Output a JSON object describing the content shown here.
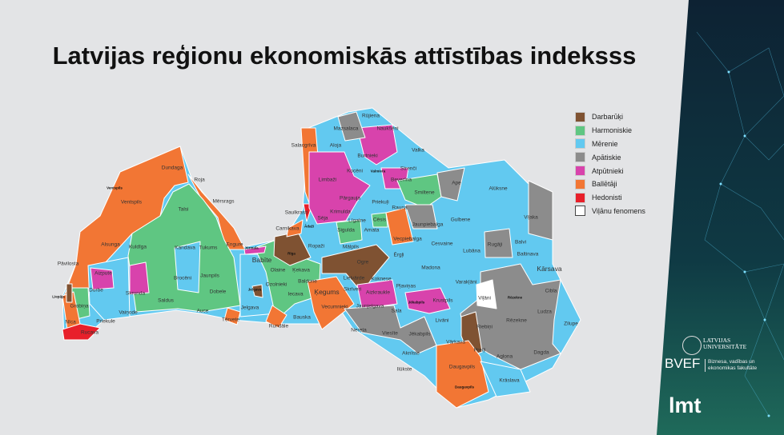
{
  "title": "Latvijas reģionu ekonomiskās attīstības indeksss",
  "colors": {
    "background": "#e3e4e6",
    "darbaruki": "#7f5232",
    "harmoniskie": "#5fc682",
    "merenie": "#62c9f0",
    "apatiskie": "#8c8c8c",
    "atputnieki": "#d843ac",
    "balletaji": "#f27634",
    "hedonisti": "#e8202a",
    "vilanu": "#ffffff"
  },
  "legend": [
    {
      "label": "Darbarūķi",
      "color": "#7f5232"
    },
    {
      "label": "Harmoniskie",
      "color": "#5fc682"
    },
    {
      "label": "Mērenie",
      "color": "#62c9f0"
    },
    {
      "label": "Apātiskie",
      "color": "#8c8c8c"
    },
    {
      "label": "Atpūtnieki",
      "color": "#d843ac"
    },
    {
      "label": "Ballētāji",
      "color": "#f27634"
    },
    {
      "label": "Hedonisti",
      "color": "#e8202a"
    },
    {
      "label": "Viļānu fenomens",
      "color": "#ffffff"
    }
  ],
  "labels": [
    "Dundaga",
    "Roja",
    "Mērsrags",
    "Ventspils",
    "Ventspils",
    "Talsi",
    "Alsunga",
    "Kuldīga",
    "Kandava",
    "Tukums",
    "Engure",
    "Pāvilosta",
    "Aizpute",
    "Durbe",
    "Skrunda",
    "Brocēni",
    "Jaunpils",
    "Dobele",
    "Saldus",
    "Grobiņa",
    "Liepāja",
    "Vaiņode",
    "Priekule",
    "Auce",
    "Jelgava",
    "Tērvete",
    "Nīca",
    "Rucava",
    "Babīte",
    "Jūrmala",
    "Jelgava",
    "Ozolnieki",
    "Olaine",
    "Ķekava",
    "Baldone",
    "Iecava",
    "Bauska",
    "Rundāle",
    "Ķegums",
    "Vecumnieki",
    "Rīga",
    "Ādaži",
    "Carnikava",
    "Saulkrasti",
    "Salacgrīva",
    "Aloja",
    "Mazsalaca",
    "Rūjiena",
    "Naukšēni",
    "Burtnieki",
    "Valka",
    "Strenči",
    "Kocēni",
    "Valmiera",
    "Beverīna",
    "Limbaži",
    "Pārgauja",
    "Sēja",
    "Krimulda",
    "Līgatne",
    "Sigulda",
    "Priekuļi",
    "Cēsis",
    "Smiltene",
    "Rauna",
    "Jaunpiebalga",
    "Vecpiebalga",
    "Amata",
    "Mālpils",
    "Ropaži",
    "Ogre",
    "Ērgļi",
    "Lielvārde",
    "Skrīveri",
    "Koknese",
    "Aizkraukle",
    "Jaunjelgava",
    "Pļaviņas",
    "Nereta",
    "Viesīte",
    "Sala",
    "Jēkabpils",
    "Krustpils",
    "Jēkabpils",
    "Aknīste",
    "Ilūkste",
    "Ape",
    "Alūksne",
    "Gulbene",
    "Cesvaine",
    "Madona",
    "Lubāna",
    "Rugāji",
    "Balvi",
    "Viļaka",
    "Baltinava",
    "Kārsava",
    "Varakļāni",
    "Viļāni",
    "Rēzekne",
    "Rēzekne",
    "Cibla",
    "Ludza",
    "Zilupe",
    "Livāni",
    "Riebiņi",
    "Preiļi",
    "Vārkava",
    "Aglona",
    "Dagda",
    "Daugavpils",
    "Daugavpils",
    "Krāslava"
  ],
  "logos": {
    "university": "LATVIJAS UNIVERSITĀTE",
    "faculty_abbr": "BVEF",
    "faculty": "Biznesa, vadības un ekonomikas fakultāte",
    "lmt": "lmt"
  }
}
